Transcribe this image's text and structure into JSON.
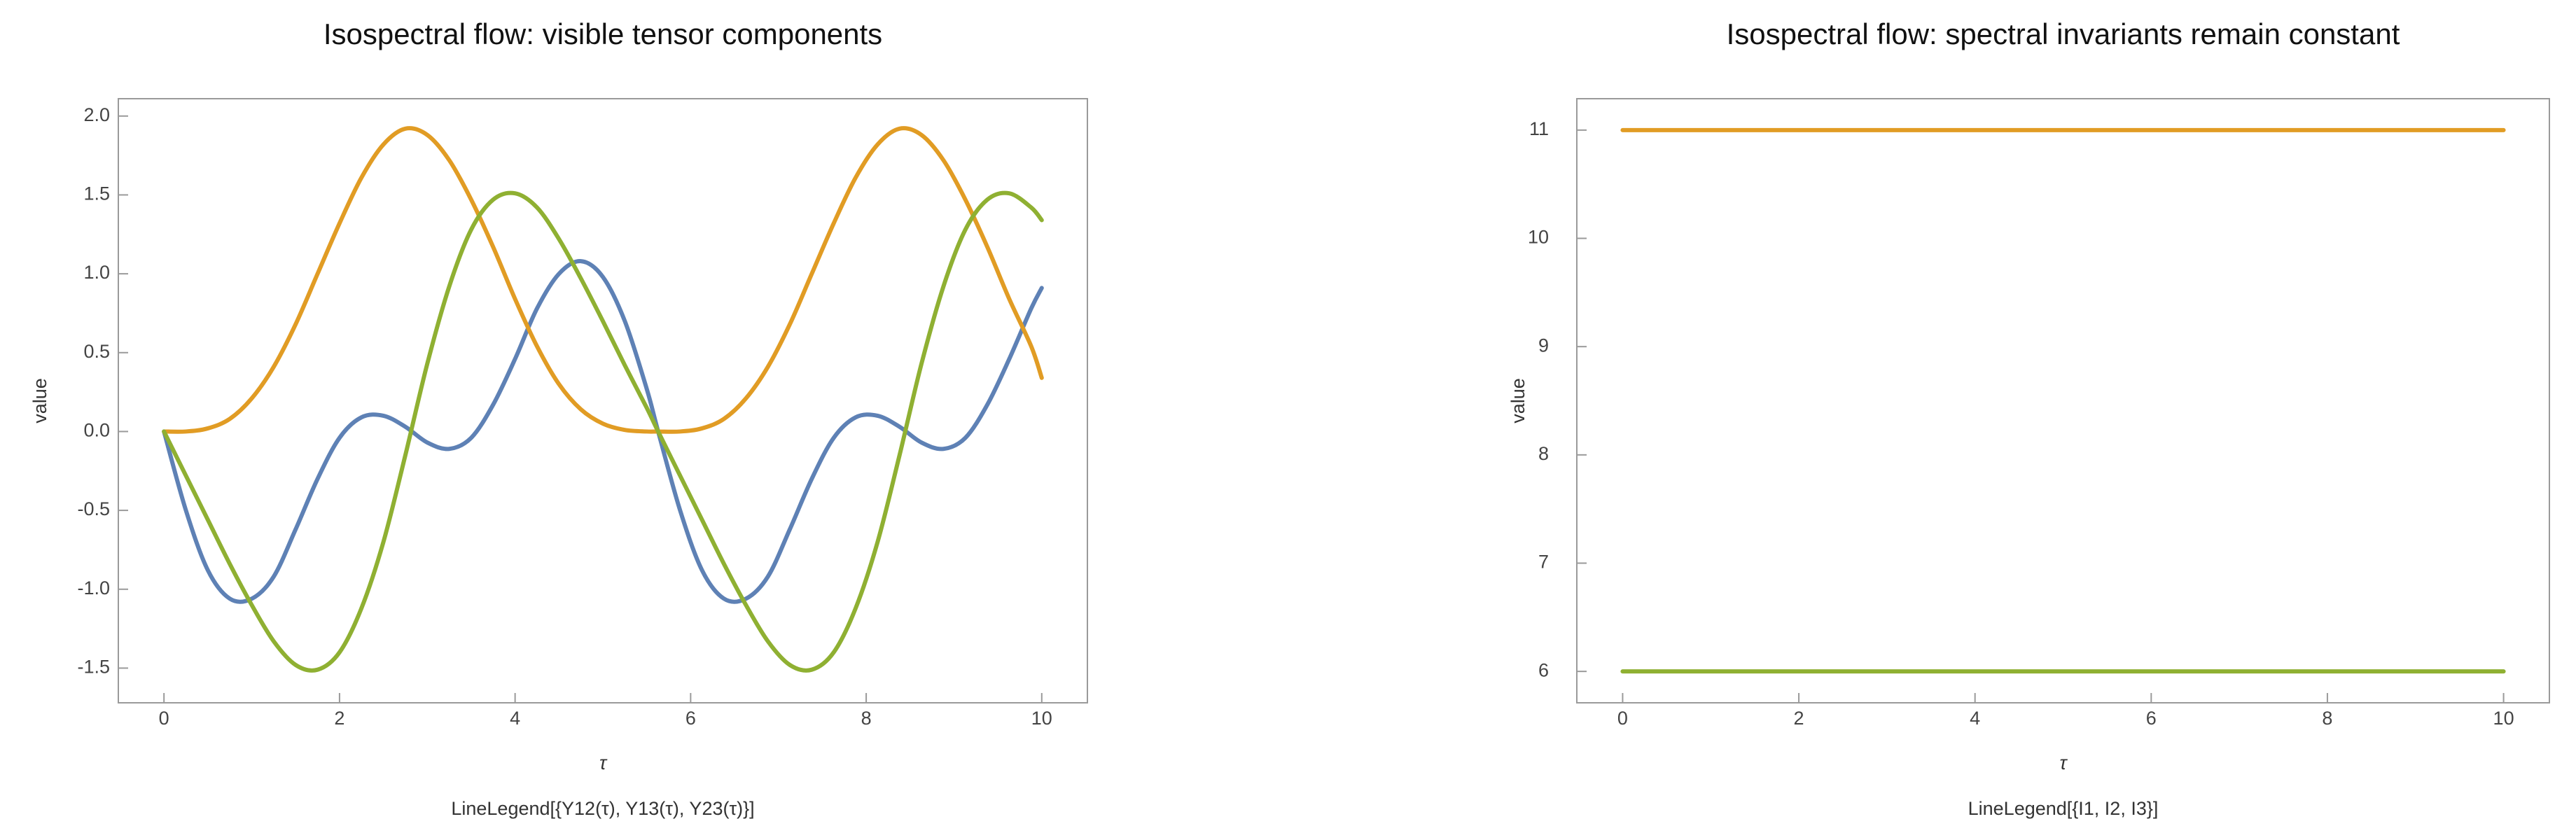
{
  "chart_data": [
    {
      "type": "line",
      "title": "Isospectral flow: visible tensor components",
      "xlabel": "τ",
      "ylabel": "value",
      "legend_text": "LineLegend[{Y12(τ), Y13(τ), Y23(τ)}]",
      "x": [
        0,
        0.25,
        0.5,
        0.75,
        1,
        1.25,
        1.5,
        1.75,
        2,
        2.25,
        2.5,
        2.75,
        3,
        3.25,
        3.5,
        3.75,
        4,
        4.25,
        4.5,
        4.75,
        5,
        5.25,
        5.5,
        5.63,
        5.88,
        6.13,
        6.38,
        6.63,
        6.88,
        7.13,
        7.38,
        7.63,
        7.88,
        8.13,
        8.38,
        8.63,
        8.88,
        9.13,
        9.38,
        9.63,
        9.88,
        10
      ],
      "series": [
        {
          "color": "#5e81b5",
          "values": [
            0,
            -0.5,
            -0.88,
            -1.06,
            -1.06,
            -0.92,
            -0.62,
            -0.3,
            -0.04,
            0.09,
            0.1,
            0.03,
            -0.07,
            -0.11,
            -0.04,
            0.17,
            0.46,
            0.78,
            1.0,
            1.08,
            0.98,
            0.7,
            0.27,
            0,
            -0.5,
            -0.88,
            -1.06,
            -1.06,
            -0.92,
            -0.62,
            -0.3,
            -0.04,
            0.09,
            0.1,
            0.03,
            -0.07,
            -0.11,
            -0.04,
            0.17,
            0.46,
            0.78,
            0.91
          ]
        },
        {
          "color": "#e19c24",
          "values": [
            0,
            0,
            0.02,
            0.08,
            0.21,
            0.41,
            0.68,
            1.0,
            1.32,
            1.61,
            1.82,
            1.92,
            1.88,
            1.72,
            1.47,
            1.17,
            0.84,
            0.54,
            0.3,
            0.14,
            0.05,
            0.01,
            0,
            0,
            0,
            0.02,
            0.08,
            0.21,
            0.41,
            0.68,
            1.0,
            1.32,
            1.61,
            1.82,
            1.92,
            1.88,
            1.72,
            1.47,
            1.17,
            0.84,
            0.54,
            0.34
          ]
        },
        {
          "color": "#8fb032",
          "values": [
            0,
            -0.28,
            -0.56,
            -0.84,
            -1.1,
            -1.33,
            -1.48,
            -1.51,
            -1.4,
            -1.12,
            -0.7,
            -0.15,
            0.43,
            0.92,
            1.28,
            1.47,
            1.51,
            1.42,
            1.22,
            0.97,
            0.7,
            0.42,
            0.15,
            0,
            -0.28,
            -0.56,
            -0.84,
            -1.1,
            -1.33,
            -1.48,
            -1.51,
            -1.4,
            -1.12,
            -0.7,
            -0.15,
            0.43,
            0.92,
            1.28,
            1.47,
            1.51,
            1.42,
            1.34
          ]
        }
      ],
      "xlim": [
        -0.52,
        10.52
      ],
      "ylim": [
        -1.72,
        2.11
      ],
      "xticks": [
        0,
        2,
        4,
        6,
        8,
        10
      ],
      "yticks": [
        -1.5,
        {
          "value": -1,
          "label": "-1.0"
        },
        -0.5,
        {
          "value": 0,
          "label": "0.0"
        },
        0.5,
        {
          "value": 1,
          "label": "1.0"
        },
        1.5,
        {
          "value": 2,
          "label": "2.0"
        }
      ]
    },
    {
      "type": "line",
      "title": "Isospectral flow: spectral invariants remain constant",
      "xlabel": "τ",
      "ylabel": "value",
      "legend_text": "LineLegend[{I1, I2, I3}]",
      "x": [
        0,
        10
      ],
      "series": [
        {
          "color": "#e19c24",
          "values": [
            11,
            11
          ]
        },
        {
          "color": "#8fb032",
          "values": [
            6,
            6
          ]
        }
      ],
      "xlim": [
        -0.52,
        10.52
      ],
      "ylim": [
        5.71,
        11.29
      ],
      "xticks": [
        0,
        2,
        4,
        6,
        8,
        10
      ],
      "yticks": [
        6,
        7,
        8,
        9,
        10,
        11
      ]
    }
  ]
}
